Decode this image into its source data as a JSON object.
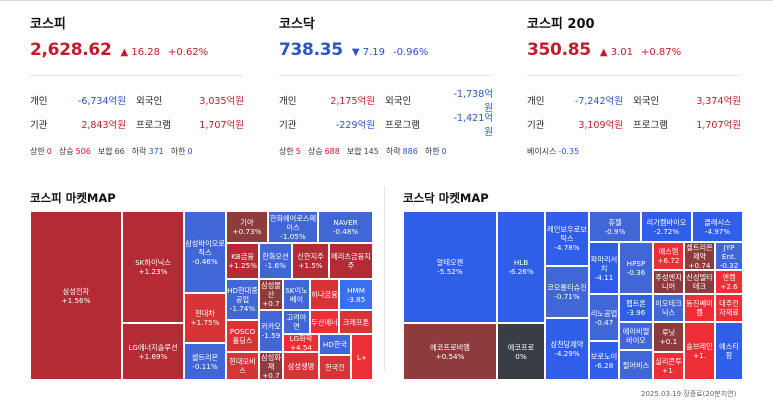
{
  "indices": [
    {
      "name": "코스피",
      "value": "2,628.62",
      "direction": "up",
      "arrow": "▲",
      "change": "16.28",
      "pct": "+0.62%",
      "rows": [
        {
          "l1": "개인",
          "v1": "-6,734억원",
          "d1": "down",
          "l2": "외국인",
          "v2": "3,035억원",
          "d2": "up"
        },
        {
          "l1": "기관",
          "v1": "2,843억원",
          "d1": "up",
          "l2": "프로그램",
          "v2": "1,707억원",
          "d2": "up"
        }
      ],
      "footer": [
        {
          "label": "상한",
          "value": "0",
          "color": "up"
        },
        {
          "label": "상승",
          "value": "506",
          "color": "up"
        },
        {
          "label": "보합",
          "value": "66",
          "color": "blk"
        },
        {
          "label": "하락",
          "value": "371",
          "color": "down"
        },
        {
          "label": "하한",
          "value": "0",
          "color": "down"
        }
      ]
    },
    {
      "name": "코스닥",
      "value": "738.35",
      "direction": "down",
      "arrow": "▼",
      "change": "7.19",
      "pct": "-0.96%",
      "rows": [
        {
          "l1": "개인",
          "v1": "2,175억원",
          "d1": "up",
          "l2": "외국인",
          "v2": "-1,738억원",
          "d2": "down"
        },
        {
          "l1": "기관",
          "v1": "-229억원",
          "d1": "down",
          "l2": "프로그램",
          "v2": "-1,421억원",
          "d2": "down"
        }
      ],
      "footer": [
        {
          "label": "상한",
          "value": "5",
          "color": "up"
        },
        {
          "label": "상승",
          "value": "688",
          "color": "up"
        },
        {
          "label": "보합",
          "value": "145",
          "color": "blk"
        },
        {
          "label": "하락",
          "value": "886",
          "color": "down"
        },
        {
          "label": "하한",
          "value": "0",
          "color": "down"
        }
      ]
    },
    {
      "name": "코스피 200",
      "value": "350.85",
      "direction": "up",
      "arrow": "▲",
      "change": "3.01",
      "pct": "+0.87%",
      "rows": [
        {
          "l1": "개인",
          "v1": "-7,242억원",
          "d1": "down",
          "l2": "외국인",
          "v2": "3,374억원",
          "d2": "up"
        },
        {
          "l1": "기관",
          "v1": "3,109억원",
          "d1": "up",
          "l2": "프로그램",
          "v2": "1,707억원",
          "d2": "up"
        }
      ],
      "footer": [
        {
          "label": "베이시스",
          "value": "-0.35",
          "color": "down"
        }
      ]
    }
  ],
  "map_titles": {
    "kospi": "코스피 마켓MAP",
    "kosdaq": "코스닥 마켓MAP"
  },
  "kospi_map": [
    {
      "name": "삼성전자",
      "chg": "+1.56%",
      "c": "r1"
    },
    {
      "name": "SK하이닉스",
      "chg": "+1.23%",
      "c": "r1"
    },
    {
      "name": "LG에너지솔루션",
      "chg": "+1.69%",
      "c": "r1"
    },
    {
      "name": "삼성바이오로직스",
      "chg": "-0.46%",
      "c": "b1"
    },
    {
      "name": "현대차",
      "chg": "+1.75%",
      "c": "r2"
    },
    {
      "name": "셀트리온",
      "chg": "-0.11%",
      "c": "b1"
    },
    {
      "name": "기아",
      "chg": "+0.73%",
      "c": "r4"
    },
    {
      "name": "한화에어로스페이스",
      "chg": "-1.05%",
      "c": "b1"
    },
    {
      "name": "NAVER",
      "chg": "-0.48%",
      "c": "b1"
    },
    {
      "name": "KB금융",
      "chg": "+1.25%",
      "c": "r1"
    },
    {
      "name": "한화오션",
      "chg": "-1.6%",
      "c": "b1"
    },
    {
      "name": "신한지주",
      "chg": "+1.5%",
      "c": "r1"
    },
    {
      "name": "메리츠금융지주",
      "chg": "",
      "c": "r1"
    },
    {
      "name": "HD현대중공업",
      "chg": "-1.74%",
      "c": "b1"
    },
    {
      "name": "삼성물산",
      "chg": "+0.7",
      "c": "r4"
    },
    {
      "name": "SK이노베이",
      "chg": "",
      "c": "b1"
    },
    {
      "name": "하나금융",
      "chg": "",
      "c": "r2"
    },
    {
      "name": "HMM",
      "chg": "-3.85",
      "c": "b3"
    },
    {
      "name": "POSCO홀딩스",
      "chg": "",
      "c": "r2"
    },
    {
      "name": "카카오",
      "chg": "-1.59",
      "c": "b1"
    },
    {
      "name": "고려아연",
      "chg": "",
      "c": "b1"
    },
    {
      "name": "두산에너",
      "chg": "",
      "c": "r3"
    },
    {
      "name": "크래프톤",
      "chg": "",
      "c": "r2"
    },
    {
      "name": "LG화학",
      "chg": "+4.54",
      "c": "r3"
    },
    {
      "name": "현대모비스",
      "chg": "",
      "c": "r2"
    },
    {
      "name": "삼성화재",
      "chg": "+0.7",
      "c": "r4"
    },
    {
      "name": "삼성생명",
      "chg": "",
      "c": "r2"
    },
    {
      "name": "HD한국",
      "chg": "",
      "c": "b1"
    },
    {
      "name": "한국전",
      "chg": "",
      "c": "r2"
    },
    {
      "name": "L+",
      "chg": "",
      "c": "r3"
    }
  ],
  "kosdaq_map": [
    {
      "name": "알테오젠",
      "chg": "-5.52%",
      "c": "b2"
    },
    {
      "name": "에코프로비엠",
      "chg": "+0.54%",
      "c": "r4"
    },
    {
      "name": "HLB",
      "chg": "-6.26%",
      "c": "b2"
    },
    {
      "name": "에코프로",
      "chg": "0%",
      "c": "gray"
    },
    {
      "name": "레인보우로보틱스",
      "chg": "-4.78%",
      "c": "b2"
    },
    {
      "name": "코오롱티슈진",
      "chg": "-0.71%",
      "c": "b1"
    },
    {
      "name": "삼천당제약",
      "chg": "-4.29%",
      "c": "b2"
    },
    {
      "name": "휴젤",
      "chg": "-0.9%",
      "c": "b1"
    },
    {
      "name": "리가켐바이오",
      "chg": "-2.72%",
      "c": "b2"
    },
    {
      "name": "클래시스",
      "chg": "-4.97%",
      "c": "b2"
    },
    {
      "name": "파마리서치",
      "chg": "-4.11",
      "c": "b2"
    },
    {
      "name": "HPSP",
      "chg": "-0.36",
      "c": "b1"
    },
    {
      "name": "에스엠",
      "chg": "+6.72",
      "c": "r3"
    },
    {
      "name": "셀트리온제약",
      "chg": "+0.74",
      "c": "r4"
    },
    {
      "name": "JYP Ent.",
      "chg": "-0.32",
      "c": "b1"
    },
    {
      "name": "리노공업",
      "chg": "-0.47",
      "c": "b1"
    },
    {
      "name": "펩트론",
      "chg": "-3.96",
      "c": "b2"
    },
    {
      "name": "주성엔지니어",
      "chg": "",
      "c": "r4"
    },
    {
      "name": "신성델타테크",
      "chg": "",
      "c": "r4"
    },
    {
      "name": "엔켐",
      "chg": "+2.6",
      "c": "r3"
    },
    {
      "name": "에이비엘바이오",
      "chg": "",
      "c": "b1"
    },
    {
      "name": "이오테크닉스",
      "chg": "",
      "c": "b1"
    },
    {
      "name": "동진쎄미켐",
      "chg": "",
      "c": "r3"
    },
    {
      "name": "대주전자재료",
      "chg": "",
      "c": "r3"
    },
    {
      "name": "보로노이",
      "chg": "-6.28",
      "c": "b2"
    },
    {
      "name": "펄어비스",
      "chg": "",
      "c": "b1"
    },
    {
      "name": "루닛",
      "chg": "+0.1",
      "c": "r4"
    },
    {
      "name": "실리콘투",
      "chg": "+1.",
      "c": "r3"
    },
    {
      "name": "솔브레인",
      "chg": "+1.",
      "c": "r3"
    },
    {
      "name": "에스티팜",
      "chg": "",
      "c": "b2"
    }
  ],
  "timestamp": "2025.03.19 장종료(20분지연)"
}
